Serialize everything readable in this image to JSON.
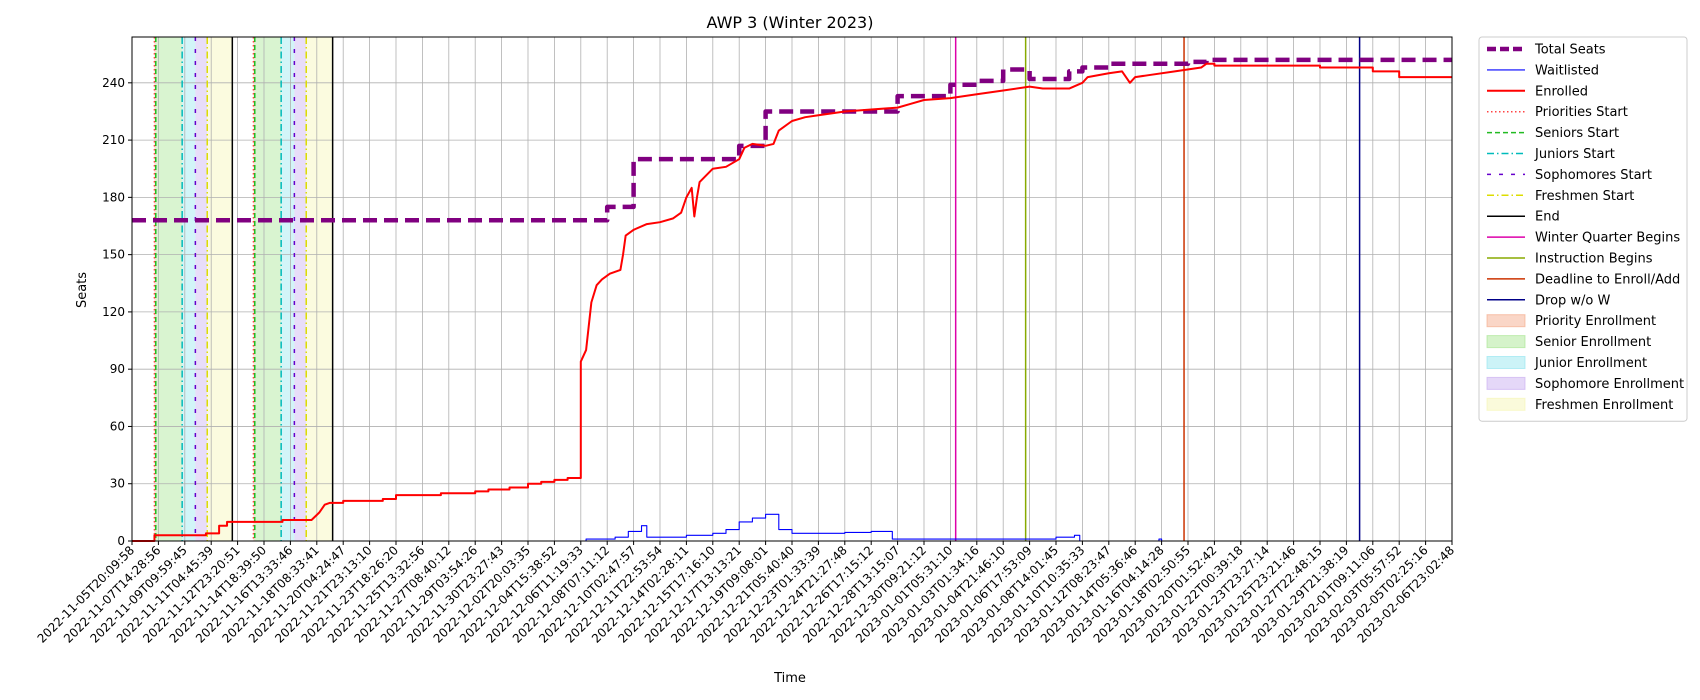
{
  "chart_data": {
    "type": "line",
    "title": "AWP 3 (Winter 2023)",
    "xlabel": "Time",
    "ylabel": "Seats",
    "ylim": [
      0,
      264
    ],
    "grid": true,
    "legend_position": "outside-right",
    "x_tick_labels": [
      "2022-11-05T20:09:58",
      "2022-11-07T14:28:56",
      "2022-11-09T09:59:45",
      "2022-11-11T04:45:39",
      "2022-11-12T23:20:51",
      "2022-11-14T18:39:50",
      "2022-11-16T13:33:46",
      "2022-11-18T08:33:41",
      "2022-11-20T04:24:47",
      "2022-11-21T23:13:10",
      "2022-11-23T18:26:20",
      "2022-11-25T13:32:56",
      "2022-11-27T08:40:12",
      "2022-11-29T03:54:26",
      "2022-11-30T23:27:43",
      "2022-12-02T20:03:35",
      "2022-12-04T15:38:52",
      "2022-12-06T11:19:33",
      "2022-12-08T07:11:12",
      "2022-12-10T02:47:57",
      "2022-12-11T22:53:54",
      "2022-12-14T02:28:11",
      "2022-12-15T17:16:10",
      "2022-12-17T13:13:21",
      "2022-12-19T09:08:01",
      "2022-12-21T05:40:40",
      "2022-12-23T01:33:39",
      "2022-12-24T21:27:48",
      "2022-12-26T17:15:12",
      "2022-12-28T13:15:07",
      "2022-12-30T09:21:12",
      "2023-01-01T05:31:10",
      "2023-01-03T01:34:16",
      "2023-01-04T21:46:10",
      "2023-01-06T17:53:09",
      "2023-01-08T14:01:45",
      "2023-01-10T10:35:33",
      "2023-01-12T08:23:47",
      "2023-01-14T05:36:46",
      "2023-01-16T04:14:28",
      "2023-01-18T02:50:55",
      "2023-01-20T01:52:42",
      "2023-01-22T00:39:18",
      "2023-01-23T23:27:14",
      "2023-01-25T23:21:46",
      "2023-01-27T22:48:15",
      "2023-01-29T21:38:19",
      "2023-02-01T09:11:06",
      "2023-02-03T05:57:52",
      "2023-02-05T02:25:16",
      "2023-02-06T23:02:48"
    ],
    "y_ticks": [
      0,
      30,
      60,
      90,
      120,
      150,
      180,
      210,
      240
    ],
    "series": [
      {
        "name": "Total Seats",
        "color": "#800080",
        "points": [
          [
            0,
            168
          ],
          [
            18,
            168
          ],
          [
            18,
            175
          ],
          [
            19,
            175
          ],
          [
            19,
            200
          ],
          [
            23,
            200
          ],
          [
            23,
            207
          ],
          [
            24,
            207
          ],
          [
            24,
            225
          ],
          [
            29,
            225
          ],
          [
            29,
            233
          ],
          [
            31,
            233
          ],
          [
            31,
            239
          ],
          [
            32,
            239
          ],
          [
            32,
            241
          ],
          [
            33,
            241
          ],
          [
            33,
            247
          ],
          [
            34,
            247
          ],
          [
            34,
            242
          ],
          [
            35.5,
            242
          ],
          [
            35.5,
            246
          ],
          [
            36,
            246
          ],
          [
            36,
            248
          ],
          [
            37,
            248
          ],
          [
            37,
            250
          ],
          [
            40,
            250
          ],
          [
            40,
            251
          ],
          [
            40.7,
            251
          ],
          [
            40.7,
            252
          ],
          [
            50,
            252
          ]
        ]
      },
      {
        "name": "Waitlisted",
        "color": "#0000ff",
        "points": [
          [
            0,
            0
          ],
          [
            17.2,
            0
          ],
          [
            17.2,
            1
          ],
          [
            18.3,
            1
          ],
          [
            18.3,
            2
          ],
          [
            18.8,
            2
          ],
          [
            18.8,
            5
          ],
          [
            19.3,
            5
          ],
          [
            19.3,
            8
          ],
          [
            19.5,
            8
          ],
          [
            19.5,
            2
          ],
          [
            21,
            2
          ],
          [
            21,
            3
          ],
          [
            22,
            3
          ],
          [
            22,
            4
          ],
          [
            22.5,
            4
          ],
          [
            22.5,
            6
          ],
          [
            23,
            6
          ],
          [
            23,
            10
          ],
          [
            23.5,
            10
          ],
          [
            23.5,
            12
          ],
          [
            24,
            12
          ],
          [
            24,
            14
          ],
          [
            24.5,
            14
          ],
          [
            24.5,
            6
          ],
          [
            25,
            6
          ],
          [
            25,
            4
          ],
          [
            27,
            4
          ],
          [
            27,
            4.5
          ],
          [
            28,
            4.5
          ],
          [
            28,
            5
          ],
          [
            28.8,
            5
          ],
          [
            28.8,
            1
          ],
          [
            35,
            1
          ],
          [
            35,
            2
          ],
          [
            35.7,
            2
          ],
          [
            35.7,
            3
          ],
          [
            35.9,
            3
          ],
          [
            35.9,
            0
          ],
          [
            38.9,
            0
          ],
          [
            38.9,
            1
          ],
          [
            39,
            1
          ],
          [
            39,
            0
          ],
          [
            50,
            0
          ]
        ]
      },
      {
        "name": "Enrolled",
        "color": "#ff0000",
        "points": [
          [
            0,
            0
          ],
          [
            0.85,
            0
          ],
          [
            0.85,
            3
          ],
          [
            2.8,
            3
          ],
          [
            2.8,
            4
          ],
          [
            3.3,
            4
          ],
          [
            3.3,
            8
          ],
          [
            3.6,
            8
          ],
          [
            3.6,
            10
          ],
          [
            5.7,
            10
          ],
          [
            5.7,
            11
          ],
          [
            6.8,
            11
          ],
          [
            7.1,
            15
          ],
          [
            7.3,
            19
          ],
          [
            7.5,
            20
          ],
          [
            8,
            20
          ],
          [
            8,
            21
          ],
          [
            9.5,
            21
          ],
          [
            9.5,
            22
          ],
          [
            10,
            22
          ],
          [
            10,
            24
          ],
          [
            11.7,
            24
          ],
          [
            11.7,
            25
          ],
          [
            13,
            25
          ],
          [
            13,
            26
          ],
          [
            13.5,
            26
          ],
          [
            13.5,
            27
          ],
          [
            14.3,
            27
          ],
          [
            14.3,
            28
          ],
          [
            15,
            28
          ],
          [
            15,
            30
          ],
          [
            15.5,
            30
          ],
          [
            15.5,
            31
          ],
          [
            16,
            31
          ],
          [
            16,
            32
          ],
          [
            16.5,
            32
          ],
          [
            16.5,
            33
          ],
          [
            17,
            33
          ],
          [
            17,
            94
          ],
          [
            17.2,
            100
          ],
          [
            17.4,
            125
          ],
          [
            17.6,
            134
          ],
          [
            17.8,
            137
          ],
          [
            18.1,
            140
          ],
          [
            18.5,
            142
          ],
          [
            18.6,
            150
          ],
          [
            18.7,
            160
          ],
          [
            19,
            163
          ],
          [
            19.5,
            166
          ],
          [
            20,
            167
          ],
          [
            20.5,
            169
          ],
          [
            20.8,
            172
          ],
          [
            21,
            180
          ],
          [
            21.2,
            185
          ],
          [
            21.3,
            170
          ],
          [
            21.4,
            180
          ],
          [
            21.5,
            188
          ],
          [
            22,
            195
          ],
          [
            22.5,
            196
          ],
          [
            23,
            200
          ],
          [
            23.2,
            206
          ],
          [
            23.5,
            208
          ],
          [
            24,
            207
          ],
          [
            24.3,
            208
          ],
          [
            24.5,
            215
          ],
          [
            25,
            220
          ],
          [
            25.5,
            222
          ],
          [
            26,
            223
          ],
          [
            27,
            225
          ],
          [
            28,
            226
          ],
          [
            29,
            227
          ],
          [
            29.5,
            229
          ],
          [
            30,
            231
          ],
          [
            31,
            232
          ],
          [
            32,
            234
          ],
          [
            33,
            236
          ],
          [
            34,
            238
          ],
          [
            34.5,
            237
          ],
          [
            35.5,
            237
          ],
          [
            36,
            240
          ],
          [
            36.2,
            243
          ],
          [
            37,
            245
          ],
          [
            37.5,
            246
          ],
          [
            37.8,
            240
          ],
          [
            38,
            243
          ],
          [
            38.5,
            244
          ],
          [
            39.5,
            246
          ],
          [
            40.5,
            248
          ],
          [
            40.7,
            250
          ],
          [
            41,
            250
          ],
          [
            41,
            249
          ],
          [
            45,
            249
          ],
          [
            45,
            248
          ],
          [
            47,
            248
          ],
          [
            47,
            246
          ],
          [
            48,
            246
          ],
          [
            48,
            243
          ],
          [
            50,
            243
          ]
        ]
      }
    ],
    "phases": [
      {
        "name": "Priorities Start",
        "color": "#ff4444",
        "style": "dotted",
        "x": [
          0.85,
          4.6
        ]
      },
      {
        "name": "Seniors Start",
        "color": "#22bb22",
        "style": "dashed",
        "x": [
          0.9,
          4.65
        ]
      },
      {
        "name": "Juniors Start",
        "color": "#00bbbb",
        "style": "dashdot",
        "x": [
          1.9,
          5.65
        ]
      },
      {
        "name": "Sophomores Start",
        "color": "#6600cc",
        "style": "loosedash",
        "x": [
          2.4,
          6.15
        ]
      },
      {
        "name": "Freshmen Start",
        "color": "#dddd00",
        "style": "dashdot",
        "x": [
          2.85,
          6.6
        ]
      },
      {
        "name": "End",
        "color": "#000000",
        "style": "solid",
        "x": [
          3.8,
          7.6
        ]
      },
      {
        "name": "Winter Quarter Begins",
        "color": "#dd00aa",
        "style": "solid",
        "x": [
          31.2
        ]
      },
      {
        "name": "Instruction Begins",
        "color": "#88aa00",
        "style": "solid",
        "x": [
          33.85
        ]
      },
      {
        "name": "Deadline to Enroll/Add",
        "color": "#cc3300",
        "style": "solid",
        "x": [
          39.85
        ]
      },
      {
        "name": "Drop w/o W",
        "color": "#000088",
        "style": "solid",
        "x": [
          46.5
        ]
      }
    ],
    "regions": [
      {
        "name": "Priority Enrollment",
        "color": "#f4a582",
        "spans": [
          [
            0.85,
            0.9
          ],
          [
            4.6,
            4.65
          ]
        ]
      },
      {
        "name": "Senior Enrollment",
        "color": "#a1e48a",
        "spans": [
          [
            0.9,
            1.9
          ],
          [
            4.65,
            5.65
          ]
        ]
      },
      {
        "name": "Junior Enrollment",
        "color": "#8ee5ee",
        "spans": [
          [
            1.9,
            2.4
          ],
          [
            5.65,
            6.15
          ]
        ]
      },
      {
        "name": "Sophomore Enrollment",
        "color": "#c5a9f0",
        "spans": [
          [
            2.4,
            2.85
          ],
          [
            6.15,
            6.6
          ]
        ]
      },
      {
        "name": "Freshmen Enrollment",
        "color": "#f5f5b0",
        "spans": [
          [
            2.85,
            3.8
          ],
          [
            6.6,
            7.6
          ]
        ]
      }
    ]
  }
}
